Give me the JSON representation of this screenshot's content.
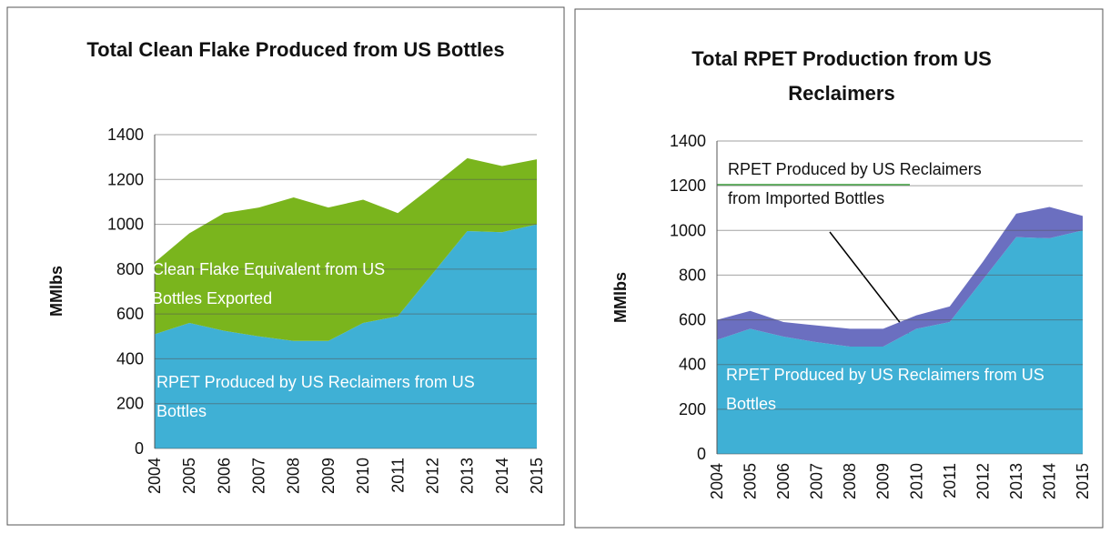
{
  "chart_data": [
    {
      "type": "area",
      "stacked": true,
      "title": "Total Clean Flake Produced from US Bottles",
      "ylabel": "MMlbs",
      "categories": [
        "2004",
        "2005",
        "2006",
        "2007",
        "2008",
        "2009",
        "2010",
        "2011",
        "2012",
        "2013",
        "2014",
        "2015"
      ],
      "series": [
        {
          "name": "RPET Produced by US Reclaimers from US Bottles",
          "color": "#3fb0d5",
          "values": [
            510,
            560,
            525,
            500,
            480,
            480,
            560,
            590,
            780,
            970,
            965,
            1000
          ]
        },
        {
          "name": "Clean Flake Equivalent from US Bottles Exported",
          "color": "#7ab51d",
          "values": [
            320,
            400,
            525,
            575,
            640,
            595,
            550,
            460,
            390,
            325,
            295,
            290
          ]
        }
      ],
      "ylim": [
        0,
        1400
      ],
      "yticks": [
        0,
        200,
        400,
        600,
        800,
        1000,
        1200,
        1400
      ],
      "grid": true
    },
    {
      "type": "area",
      "stacked": true,
      "title": "Total RPET Production from US Reclaimers",
      "ylabel": "MMlbs",
      "categories": [
        "2004",
        "2005",
        "2006",
        "2007",
        "2008",
        "2009",
        "2010",
        "2011",
        "2012",
        "2013",
        "2014",
        "2015"
      ],
      "series": [
        {
          "name": "RPET Produced by US Reclaimers from US Bottles",
          "color": "#3fb0d5",
          "values": [
            510,
            560,
            525,
            500,
            480,
            480,
            560,
            590,
            780,
            970,
            965,
            1000
          ]
        },
        {
          "name": "RPET Produced by US Reclaimers from Imported Bottles",
          "color": "#6b6fc0",
          "values": [
            90,
            80,
            65,
            75,
            80,
            80,
            60,
            70,
            80,
            105,
            140,
            65
          ]
        }
      ],
      "ylim": [
        0,
        1400
      ],
      "yticks": [
        0,
        200,
        400,
        600,
        800,
        1000,
        1200,
        1400
      ],
      "grid": true
    }
  ]
}
